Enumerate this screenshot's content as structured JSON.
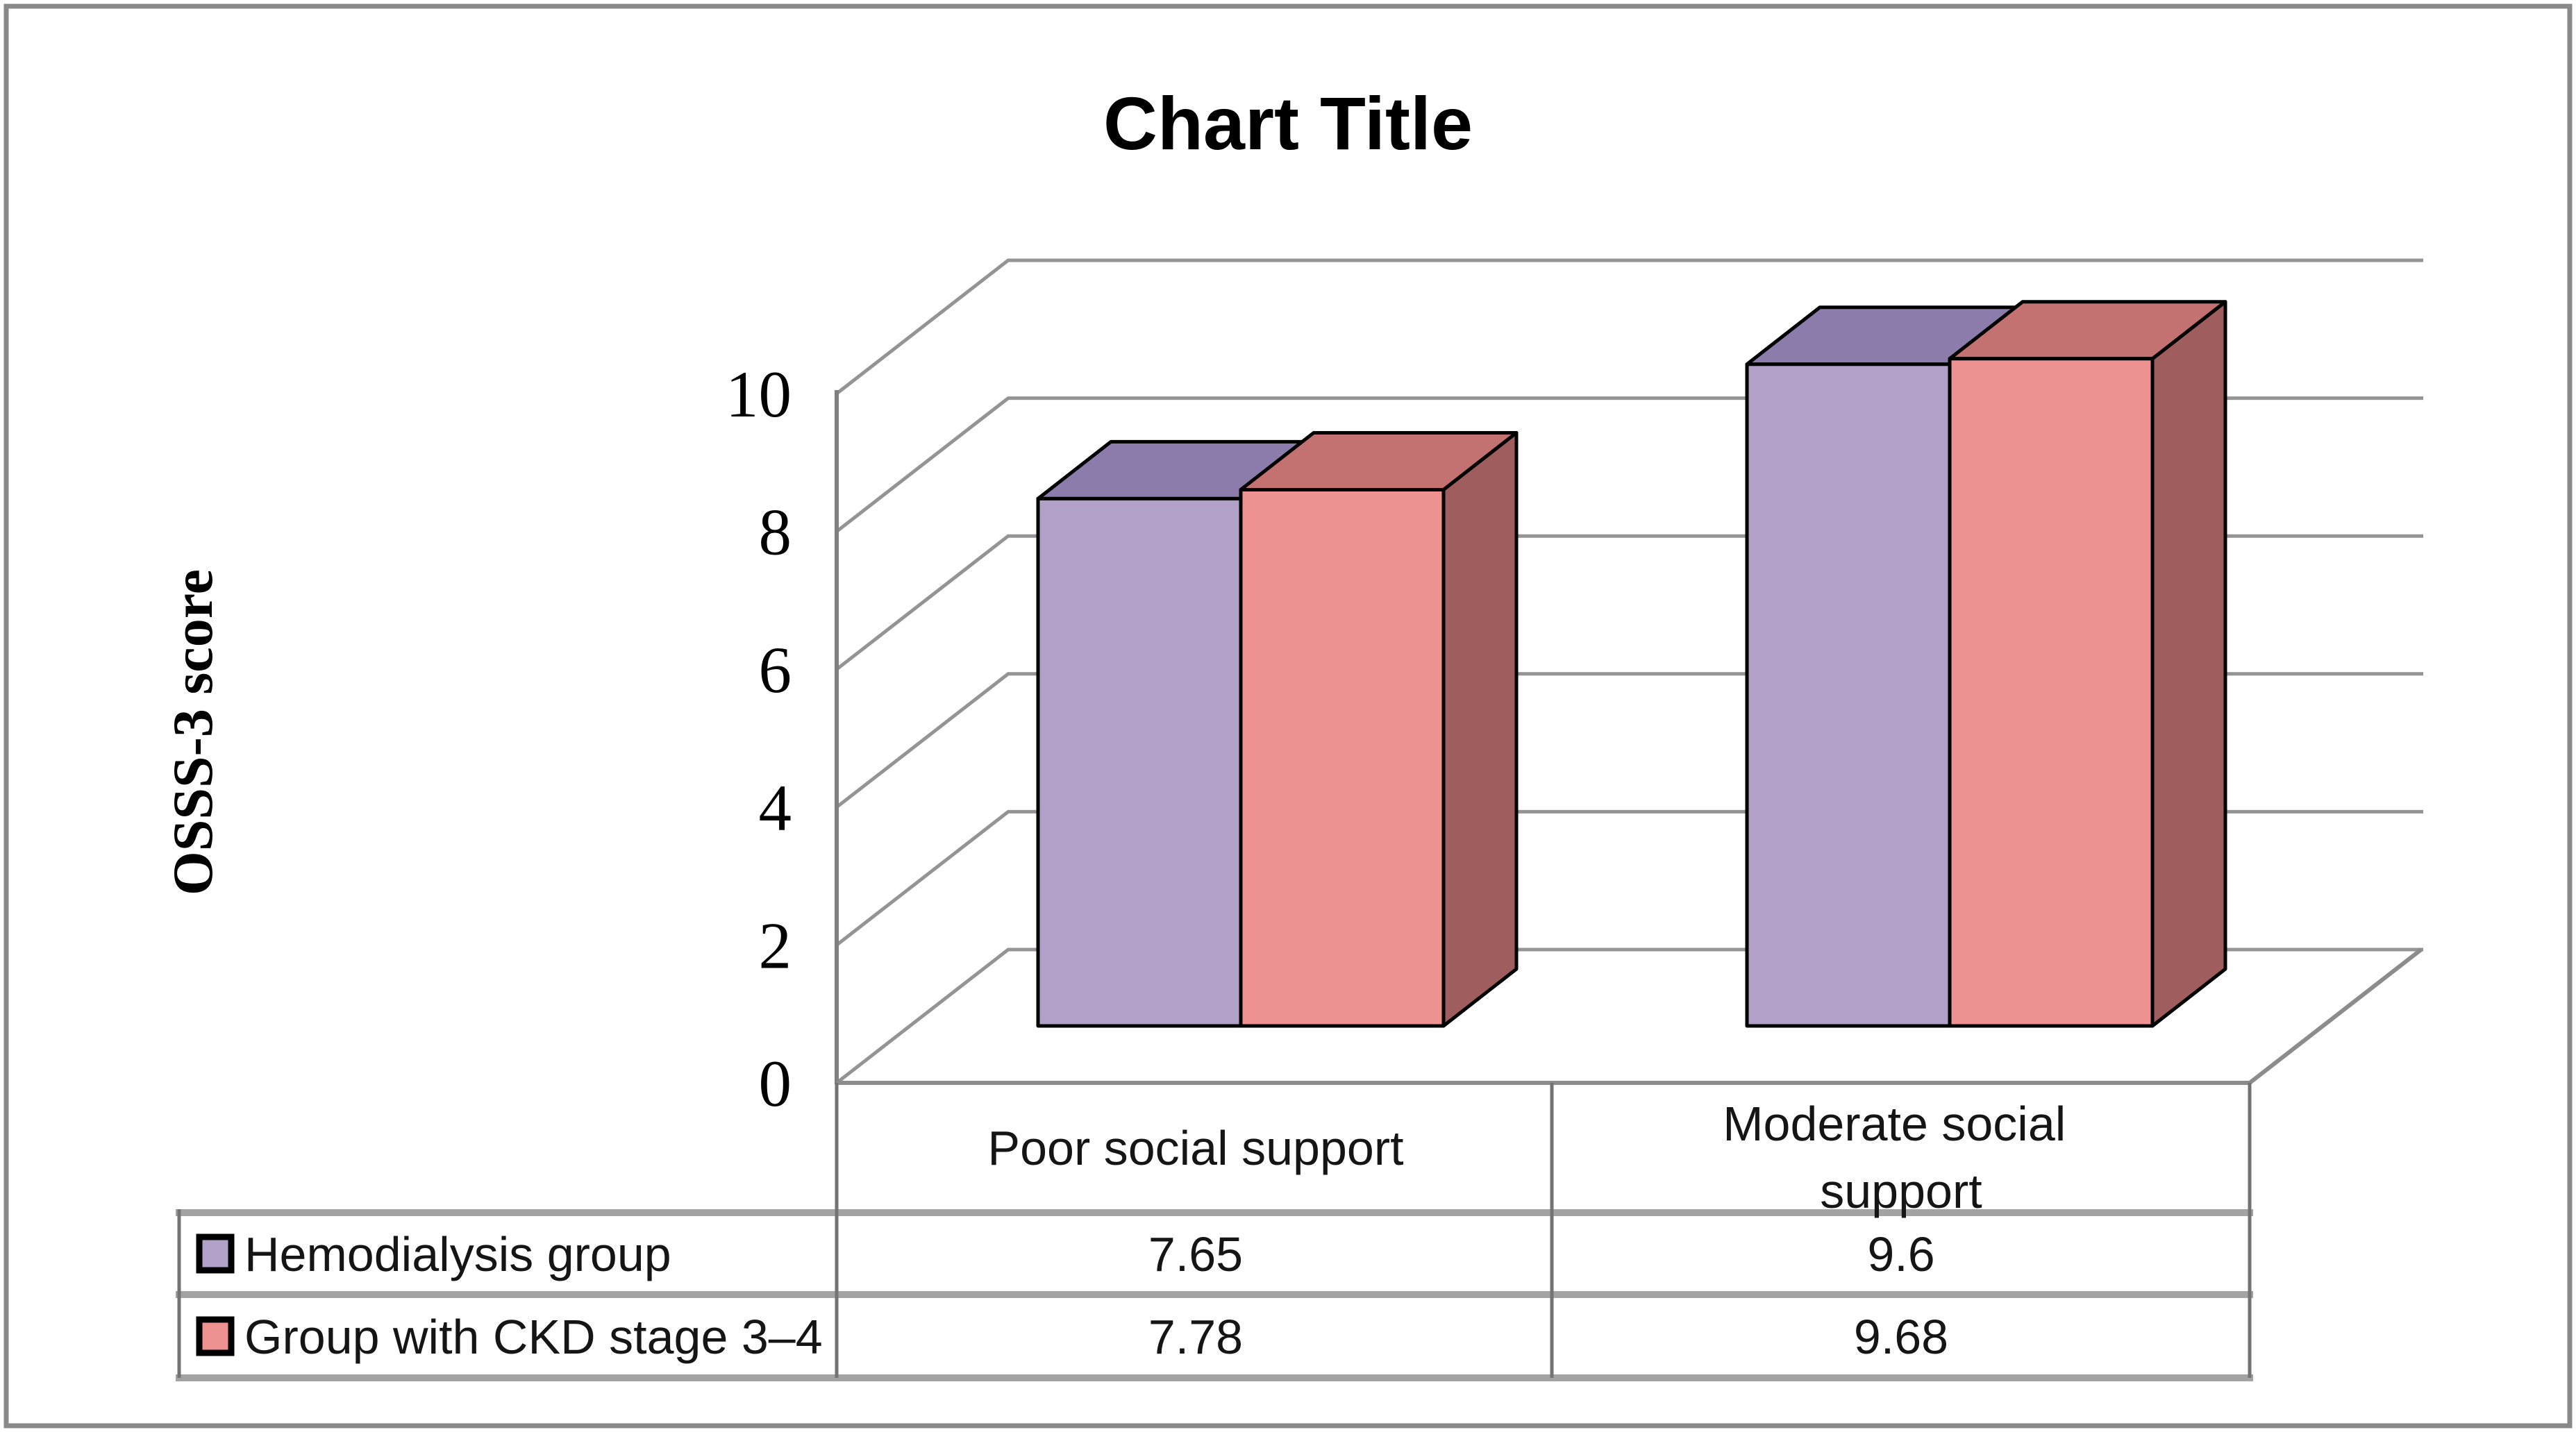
{
  "chart_data": {
    "type": "bar",
    "style": "3d-clustered-column",
    "title": "Chart Title",
    "xlabel": "",
    "ylabel": "OSSS-3 score",
    "ylim": [
      0,
      10
    ],
    "ytick_interval": 2,
    "grid": true,
    "legend_position": "bottom-data-table",
    "categories": [
      "Poor social support",
      "Moderate social support"
    ],
    "series": [
      {
        "name": "Hemodialysis group",
        "color": "#b1a0c7",
        "top_color": "#8c7cab",
        "side_color": "#7a6b96",
        "values": [
          7.65,
          9.6
        ],
        "display_values": [
          "7.65",
          "9.6"
        ]
      },
      {
        "name": "Group with CKD stage 3–4",
        "color": "#ee9191",
        "top_color": "#c37171",
        "side_color": "#9f5d5d",
        "values": [
          7.78,
          9.68
        ],
        "display_values": [
          "7.78",
          "9.68"
        ]
      }
    ]
  },
  "y_axis": {
    "label": "OSSS-3 score",
    "ticks": [
      0,
      2,
      4,
      6,
      8,
      10
    ]
  },
  "table": {
    "columns": [
      {
        "label_lines": [
          "Poor social support"
        ]
      },
      {
        "label_lines": [
          "Moderate social",
          "support"
        ]
      }
    ]
  }
}
